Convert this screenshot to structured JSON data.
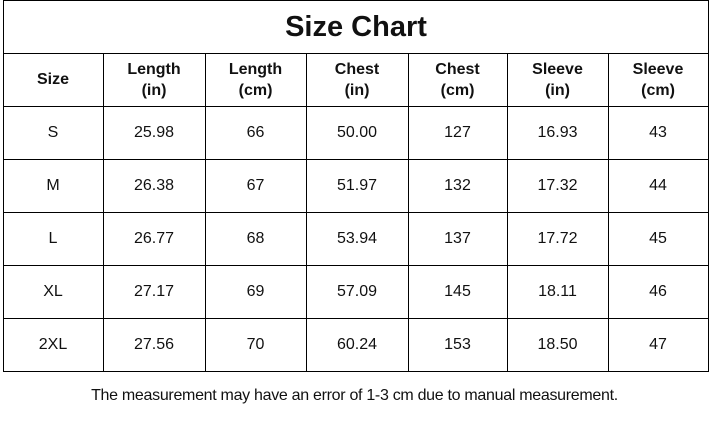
{
  "title": "Size Chart",
  "table": {
    "header": [
      [
        "Size"
      ],
      [
        "Length",
        "(in)"
      ],
      [
        "Length",
        "(cm)"
      ],
      [
        "Chest",
        "(in)"
      ],
      [
        "Chest",
        "(cm)"
      ],
      [
        "Sleeve",
        "(in)"
      ],
      [
        "Sleeve",
        "(cm)"
      ]
    ],
    "rows": [
      [
        "S",
        "25.98",
        "66",
        "50.00",
        "127",
        "16.93",
        "43"
      ],
      [
        "M",
        "26.38",
        "67",
        "51.97",
        "132",
        "17.32",
        "44"
      ],
      [
        "L",
        "26.77",
        "68",
        "53.94",
        "137",
        "17.72",
        "45"
      ],
      [
        "XL",
        "27.17",
        "69",
        "57.09",
        "145",
        "18.11",
        "46"
      ],
      [
        "2XL",
        "27.56",
        "70",
        "60.24",
        "153",
        "18.50",
        "47"
      ]
    ]
  },
  "note": "The measurement may have an error of 1-3 cm due to manual measurement."
}
